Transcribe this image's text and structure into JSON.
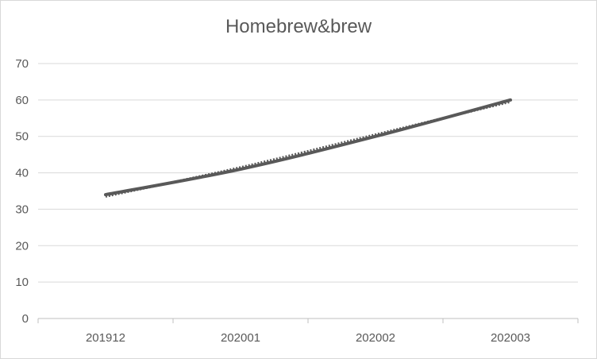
{
  "chart_data": {
    "type": "line",
    "title": "Homebrew&brew",
    "categories": [
      "201912",
      "202001",
      "202002",
      "202003"
    ],
    "series": [
      {
        "values": [
          34,
          41,
          50,
          60
        ],
        "color": "#595959",
        "style": "solid"
      },
      {
        "values": [
          33.5,
          41.5,
          50.5,
          59.5
        ],
        "color": "#595959",
        "style": "dotted",
        "trendline": true
      }
    ],
    "ylim": [
      0,
      70
    ],
    "yticks": [
      0,
      10,
      20,
      30,
      40,
      50,
      60,
      70
    ],
    "grid": true,
    "legend": "none"
  }
}
